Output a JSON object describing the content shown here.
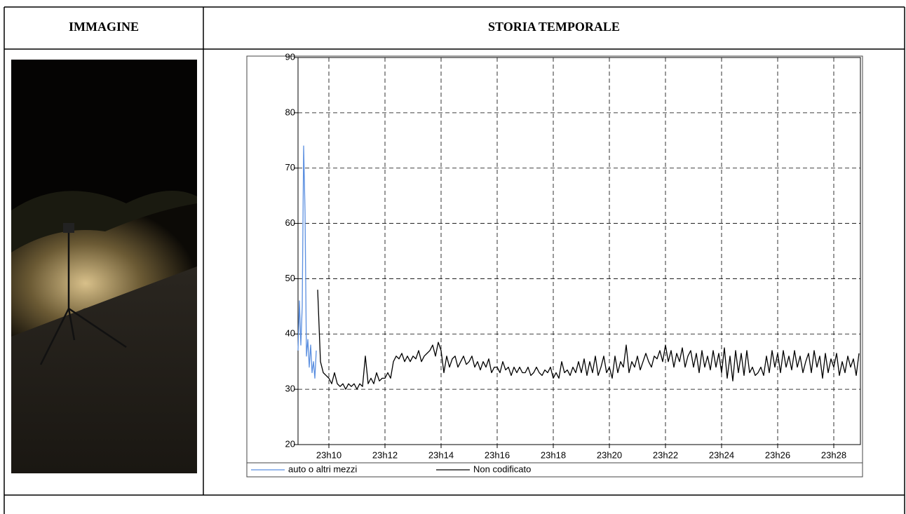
{
  "table": {
    "headers": [
      "IMMAGINE",
      "STORIA TEMPORALE"
    ]
  },
  "chart_data": {
    "type": "line",
    "xlim": [
      1388.9,
      1408.95
    ],
    "ylim": [
      20,
      90
    ],
    "yticks": [
      20,
      30,
      40,
      50,
      60,
      70,
      80,
      90
    ],
    "xticks": [
      {
        "value": 1390,
        "label": "23h10"
      },
      {
        "value": 1392,
        "label": "23h12"
      },
      {
        "value": 1394,
        "label": "23h14"
      },
      {
        "value": 1396,
        "label": "23h16"
      },
      {
        "value": 1398,
        "label": "23h18"
      },
      {
        "value": 1400,
        "label": "23h20"
      },
      {
        "value": 1402,
        "label": "23h22"
      },
      {
        "value": 1404,
        "label": "23h24"
      },
      {
        "value": 1406,
        "label": "23h26"
      },
      {
        "value": 1408,
        "label": "23h28"
      }
    ],
    "grid": true,
    "legend": "bottom",
    "series": [
      {
        "name": "auto o altri mezzi",
        "color": "#5b8fe0",
        "x": [
          1388.9,
          1388.95,
          1389.0,
          1389.05,
          1389.1,
          1389.15,
          1389.2,
          1389.25,
          1389.3,
          1389.35,
          1389.4,
          1389.45,
          1389.5,
          1389.55
        ],
        "values": [
          37,
          46,
          38,
          45,
          74,
          62,
          36,
          39,
          34,
          38,
          33,
          35,
          32,
          37
        ]
      },
      {
        "name": "Non codificato",
        "color": "#000000",
        "x": [
          1389.6,
          1389.7,
          1389.8,
          1389.9,
          1390.0,
          1390.1,
          1390.2,
          1390.3,
          1390.4,
          1390.5,
          1390.6,
          1390.7,
          1390.8,
          1390.9,
          1391.0,
          1391.1,
          1391.2,
          1391.3,
          1391.4,
          1391.5,
          1391.6,
          1391.7,
          1391.8,
          1391.9,
          1392.0,
          1392.1,
          1392.2,
          1392.3,
          1392.4,
          1392.5,
          1392.6,
          1392.7,
          1392.8,
          1392.9,
          1393.0,
          1393.1,
          1393.2,
          1393.3,
          1393.4,
          1393.5,
          1393.6,
          1393.7,
          1393.8,
          1393.9,
          1394.0,
          1394.1,
          1394.2,
          1394.3,
          1394.4,
          1394.5,
          1394.6,
          1394.7,
          1394.8,
          1394.9,
          1395.0,
          1395.1,
          1395.2,
          1395.3,
          1395.4,
          1395.5,
          1395.6,
          1395.7,
          1395.8,
          1395.9,
          1396.0,
          1396.1,
          1396.2,
          1396.3,
          1396.4,
          1396.5,
          1396.6,
          1396.7,
          1396.8,
          1396.9,
          1397.0,
          1397.1,
          1397.2,
          1397.3,
          1397.4,
          1397.5,
          1397.6,
          1397.7,
          1397.8,
          1397.9,
          1398.0,
          1398.1,
          1398.2,
          1398.3,
          1398.4,
          1398.5,
          1398.6,
          1398.7,
          1398.8,
          1398.9,
          1399.0,
          1399.1,
          1399.2,
          1399.3,
          1399.4,
          1399.5,
          1399.6,
          1399.7,
          1399.8,
          1399.9,
          1400.0,
          1400.1,
          1400.2,
          1400.3,
          1400.4,
          1400.5,
          1400.6,
          1400.7,
          1400.8,
          1400.9,
          1401.0,
          1401.1,
          1401.2,
          1401.3,
          1401.4,
          1401.5,
          1401.6,
          1401.7,
          1401.8,
          1401.9,
          1402.0,
          1402.1,
          1402.2,
          1402.3,
          1402.4,
          1402.5,
          1402.6,
          1402.7,
          1402.8,
          1402.9,
          1403.0,
          1403.1,
          1403.2,
          1403.3,
          1403.4,
          1403.5,
          1403.6,
          1403.7,
          1403.8,
          1403.9,
          1404.0,
          1404.1,
          1404.2,
          1404.3,
          1404.4,
          1404.5,
          1404.6,
          1404.7,
          1404.8,
          1404.9,
          1405.0,
          1405.1,
          1405.2,
          1405.3,
          1405.4,
          1405.5,
          1405.6,
          1405.7,
          1405.8,
          1405.9,
          1406.0,
          1406.1,
          1406.2,
          1406.3,
          1406.4,
          1406.5,
          1406.6,
          1406.7,
          1406.8,
          1406.9,
          1407.0,
          1407.1,
          1407.2,
          1407.3,
          1407.4,
          1407.5,
          1407.6,
          1407.7,
          1407.8,
          1407.9,
          1408.0,
          1408.1,
          1408.2,
          1408.3,
          1408.4,
          1408.5,
          1408.6,
          1408.7,
          1408.8,
          1408.9
        ],
        "values": [
          48,
          35,
          33,
          32.5,
          32,
          31,
          33,
          31,
          30.5,
          31,
          30,
          31,
          30.5,
          31,
          30,
          31,
          30.5,
          36,
          31,
          32,
          31,
          33,
          31.5,
          32,
          32,
          33,
          32,
          35,
          36,
          35.5,
          36.5,
          35,
          36,
          35,
          36,
          35.5,
          37,
          35,
          36,
          36.5,
          37,
          38,
          36,
          38.5,
          37,
          33,
          36,
          34,
          35.5,
          36,
          34,
          35,
          36,
          34.5,
          35,
          36,
          34,
          35,
          33.5,
          35,
          34,
          35.5,
          33,
          34,
          34,
          33,
          35,
          33.5,
          34,
          32.5,
          34,
          33,
          34,
          33,
          33,
          34,
          32.5,
          33,
          34,
          33,
          32.5,
          33.5,
          33,
          34,
          32,
          33,
          32,
          35,
          33,
          33.5,
          32.5,
          34,
          33,
          35,
          33,
          35.5,
          32.5,
          35,
          33,
          36,
          32.5,
          34,
          36,
          33,
          34,
          32,
          36,
          33,
          35,
          34,
          38,
          33,
          35,
          34,
          36,
          33.5,
          35,
          36.5,
          35,
          34,
          36,
          35.5,
          37,
          35,
          38,
          35,
          37,
          34,
          36.5,
          35,
          37.5,
          34,
          36,
          37,
          34,
          36.5,
          33,
          37,
          34,
          36,
          33.5,
          37,
          34,
          36.5,
          33,
          37.5,
          32,
          36,
          31.5,
          37,
          33,
          36.5,
          32.5,
          37,
          33,
          34,
          32.5,
          33,
          34,
          32.5,
          36,
          33,
          37,
          34,
          36.5,
          33,
          37,
          34,
          36,
          33.5,
          37,
          34,
          36,
          33,
          35,
          36.5,
          33,
          37,
          34,
          36,
          32,
          36.5,
          33,
          35.5,
          34,
          36.5,
          32.5,
          35,
          33,
          36,
          34,
          35.5,
          32.5,
          36.5
        ]
      }
    ]
  }
}
